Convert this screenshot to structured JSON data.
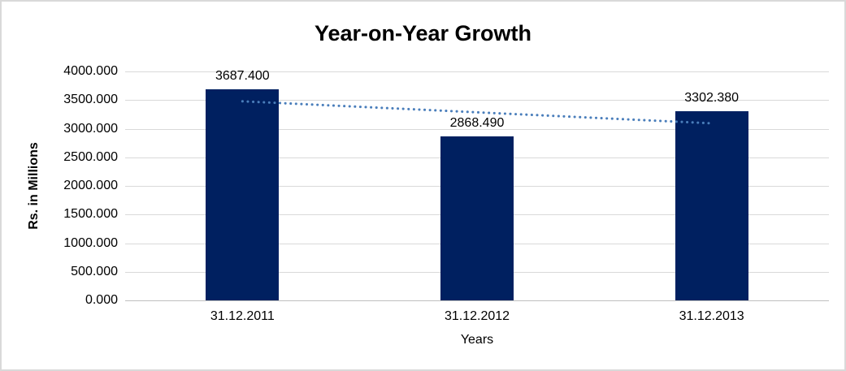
{
  "chart_data": {
    "type": "bar",
    "title": "Year-on-Year Growth",
    "xlabel": "Years",
    "ylabel": "Rs. in Millions",
    "categories": [
      "31.12.2011",
      "31.12.2012",
      "31.12.2013"
    ],
    "values": [
      3687.4,
      2868.49,
      3302.38
    ],
    "data_labels": [
      "3687.400",
      "2868.490",
      "3302.380"
    ],
    "y_ticks": [
      "0.000",
      "500.000",
      "1000.000",
      "1500.000",
      "2000.000",
      "2500.000",
      "3000.000",
      "3500.000",
      "4000.000"
    ],
    "ylim": [
      0,
      4000
    ],
    "grid": true,
    "legend_position": "none",
    "trendline": {
      "type": "linear",
      "style": "dotted",
      "start_value": 3478.6,
      "end_value": 3093.6
    },
    "colors": {
      "bar": "#002060",
      "trendline": "#4A7EBB",
      "gridline": "#D9D9D9",
      "axis_line": "#BFBFBF",
      "text": "#000000",
      "frame_border": "#D9D9D9",
      "background": "#FFFFFF"
    }
  }
}
